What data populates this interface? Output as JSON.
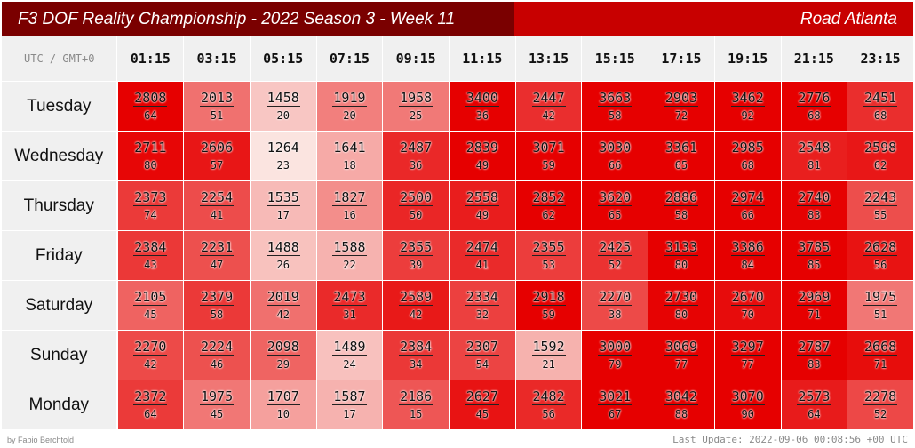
{
  "title": {
    "left": "F3 DOF Reality Championship - 2022 Season 3 - Week 11",
    "right": "Road Atlanta"
  },
  "header": {
    "tz": "UTC / GMT+0",
    "times": [
      "01:15",
      "03:15",
      "05:15",
      "07:15",
      "09:15",
      "11:15",
      "13:15",
      "15:15",
      "17:15",
      "19:15",
      "21:15",
      "23:15"
    ]
  },
  "rows": [
    {
      "day": "Tuesday",
      "cells": [
        [
          2808,
          64
        ],
        [
          2013,
          51
        ],
        [
          1458,
          20
        ],
        [
          1919,
          20
        ],
        [
          1958,
          25
        ],
        [
          3400,
          36
        ],
        [
          2447,
          42
        ],
        [
          3663,
          58
        ],
        [
          2903,
          72
        ],
        [
          3462,
          92
        ],
        [
          2776,
          68
        ],
        [
          2451,
          68
        ]
      ]
    },
    {
      "day": "Wednesday",
      "cells": [
        [
          2711,
          80
        ],
        [
          2606,
          57
        ],
        [
          1264,
          23
        ],
        [
          1641,
          18
        ],
        [
          2487,
          36
        ],
        [
          2839,
          49
        ],
        [
          3071,
          59
        ],
        [
          3030,
          66
        ],
        [
          3361,
          65
        ],
        [
          2985,
          68
        ],
        [
          2548,
          81
        ],
        [
          2598,
          62
        ]
      ]
    },
    {
      "day": "Thursday",
      "cells": [
        [
          2373,
          74
        ],
        [
          2254,
          41
        ],
        [
          1535,
          17
        ],
        [
          1827,
          16
        ],
        [
          2500,
          50
        ],
        [
          2558,
          49
        ],
        [
          2852,
          62
        ],
        [
          3620,
          65
        ],
        [
          2886,
          58
        ],
        [
          2974,
          66
        ],
        [
          2740,
          83
        ],
        [
          2243,
          55
        ]
      ]
    },
    {
      "day": "Friday",
      "cells": [
        [
          2384,
          43
        ],
        [
          2231,
          47
        ],
        [
          1488,
          26
        ],
        [
          1588,
          22
        ],
        [
          2355,
          39
        ],
        [
          2474,
          41
        ],
        [
          2355,
          53
        ],
        [
          2425,
          52
        ],
        [
          3133,
          80
        ],
        [
          3386,
          84
        ],
        [
          3785,
          85
        ],
        [
          2628,
          56
        ]
      ]
    },
    {
      "day": "Saturday",
      "cells": [
        [
          2105,
          45
        ],
        [
          2379,
          58
        ],
        [
          2019,
          42
        ],
        [
          2473,
          31
        ],
        [
          2589,
          42
        ],
        [
          2334,
          32
        ],
        [
          2918,
          59
        ],
        [
          2270,
          38
        ],
        [
          2730,
          80
        ],
        [
          2670,
          70
        ],
        [
          2969,
          71
        ],
        [
          1975,
          51
        ]
      ]
    },
    {
      "day": "Sunday",
      "cells": [
        [
          2270,
          42
        ],
        [
          2224,
          46
        ],
        [
          2098,
          29
        ],
        [
          1489,
          24
        ],
        [
          2384,
          34
        ],
        [
          2307,
          54
        ],
        [
          1592,
          21
        ],
        [
          3000,
          79
        ],
        [
          3069,
          77
        ],
        [
          3297,
          77
        ],
        [
          2787,
          83
        ],
        [
          2668,
          71
        ]
      ]
    },
    {
      "day": "Monday",
      "cells": [
        [
          2372,
          64
        ],
        [
          1975,
          45
        ],
        [
          1707,
          10
        ],
        [
          1587,
          17
        ],
        [
          2186,
          15
        ],
        [
          2627,
          45
        ],
        [
          2482,
          56
        ],
        [
          3021,
          67
        ],
        [
          3042,
          88
        ],
        [
          3070,
          90
        ],
        [
          2573,
          64
        ],
        [
          2278,
          52
        ]
      ]
    }
  ],
  "footer": {
    "author": "by Fabio Berchtold",
    "updated": "Last Update: 2022-09-06 00:08:56 +00 UTC"
  },
  "colors": {
    "title_dark": "#7a0000",
    "title_red": "#c80000",
    "hot": "#e60000",
    "cold": "#fbe6e2",
    "header_bg": "#f0f0f0"
  }
}
